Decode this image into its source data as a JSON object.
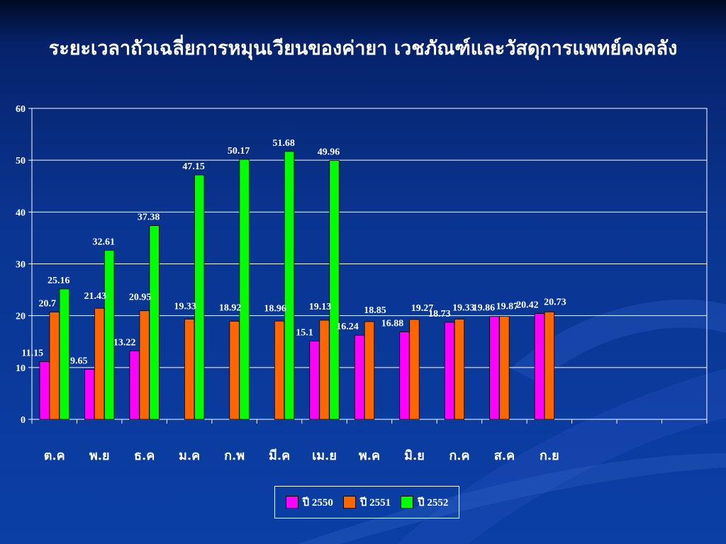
{
  "title": "ระยะเวลาถัวเฉลี่ยการหมุนเวียนของค่ายา เวชภัณฑ์และวัสดุการแพทย์คงคลัง",
  "chart_data": {
    "type": "bar",
    "categories": [
      "ต.ค",
      "พ.ย",
      "ธ.ค",
      "ม.ค",
      "ก.พ",
      "มี.ค",
      "เม.ย",
      "พ.ค",
      "มิ.ย",
      "ก.ค",
      "ส.ค",
      "ก.ย"
    ],
    "ylim": [
      0,
      60
    ],
    "yticks": [
      0,
      10,
      20,
      30,
      40,
      50,
      60
    ],
    "grid": true,
    "legend_position": "bottom-center",
    "series": [
      {
        "name": "ปี 2550",
        "color": "#ff00ff",
        "values": [
          11.15,
          9.65,
          13.22,
          null,
          null,
          null,
          15.1,
          16.24,
          16.88,
          18.73,
          19.86,
          20.42
        ],
        "labels": [
          "11.15",
          "9.65",
          "13.22",
          null,
          null,
          null,
          "15.1",
          "16.24",
          "16.88",
          "18.73",
          "19.86",
          "20.42"
        ]
      },
      {
        "name": "ปี 2551",
        "color": "#ff6600",
        "values": [
          20.7,
          21.43,
          20.95,
          19.33,
          18.92,
          18.96,
          19.13,
          18.85,
          19.27,
          19.33,
          19.87,
          20.73
        ],
        "labels": [
          "20.7",
          "21.43",
          "20.95",
          "19.33",
          "18.92",
          "18.96",
          "19.13",
          "18.85",
          "19.27",
          "19.33",
          "19.87",
          "20.73"
        ]
      },
      {
        "name": "ปี 2552",
        "color": "#00ff00",
        "values": [
          25.16,
          32.61,
          37.38,
          47.15,
          50.17,
          51.68,
          49.96,
          null,
          null,
          null,
          null,
          null
        ],
        "labels": [
          "25.16",
          "32.61",
          "37.38",
          "47.15",
          "50.17",
          "51.68",
          "49.96",
          null,
          null,
          null,
          null,
          null
        ]
      }
    ]
  }
}
